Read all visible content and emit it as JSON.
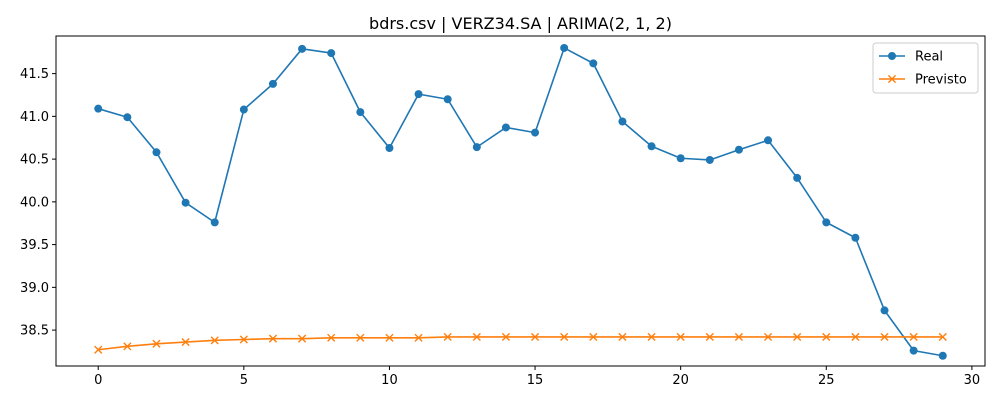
{
  "chart_data": {
    "type": "line",
    "title": "bdrs.csv | VERZ34.SA | ARIMA(2, 1, 2)",
    "xlabel": "",
    "ylabel": "",
    "xlim": [
      -1.45,
      30.45
    ],
    "ylim": [
      38.08,
      41.94
    ],
    "x": [
      0,
      1,
      2,
      3,
      4,
      5,
      6,
      7,
      8,
      9,
      10,
      11,
      12,
      13,
      14,
      15,
      16,
      17,
      18,
      19,
      20,
      21,
      22,
      23,
      24,
      25,
      26,
      27,
      28,
      29
    ],
    "xticks": [
      0,
      5,
      10,
      15,
      20,
      25,
      30
    ],
    "yticks": [
      38.5,
      39.0,
      39.5,
      40.0,
      40.5,
      41.0,
      41.5
    ],
    "xtick_labels": [
      "0",
      "5",
      "10",
      "15",
      "20",
      "25",
      "30"
    ],
    "ytick_labels": [
      "38.5",
      "39.0",
      "39.5",
      "40.0",
      "40.5",
      "41.0",
      "41.5"
    ],
    "grid": false,
    "legend_position": "top-right",
    "series": [
      {
        "name": "Real",
        "color": "#1f77b4",
        "marker": "circle",
        "values": [
          41.09,
          40.99,
          40.58,
          39.99,
          39.76,
          41.08,
          41.38,
          41.79,
          41.74,
          41.05,
          40.63,
          41.26,
          41.2,
          40.64,
          40.87,
          40.81,
          41.8,
          41.62,
          40.94,
          40.65,
          40.51,
          40.49,
          40.61,
          40.72,
          40.28,
          39.76,
          39.58,
          38.73,
          38.26,
          38.2
        ]
      },
      {
        "name": "Previsto",
        "color": "#ff7f0e",
        "marker": "x",
        "values": [
          38.27,
          38.31,
          38.34,
          38.36,
          38.38,
          38.39,
          38.4,
          38.4,
          38.41,
          38.41,
          38.41,
          38.41,
          38.42,
          38.42,
          38.42,
          38.42,
          38.42,
          38.42,
          38.42,
          38.42,
          38.42,
          38.42,
          38.42,
          38.42,
          38.42,
          38.42,
          38.42,
          38.42,
          38.42,
          38.42
        ]
      }
    ]
  }
}
